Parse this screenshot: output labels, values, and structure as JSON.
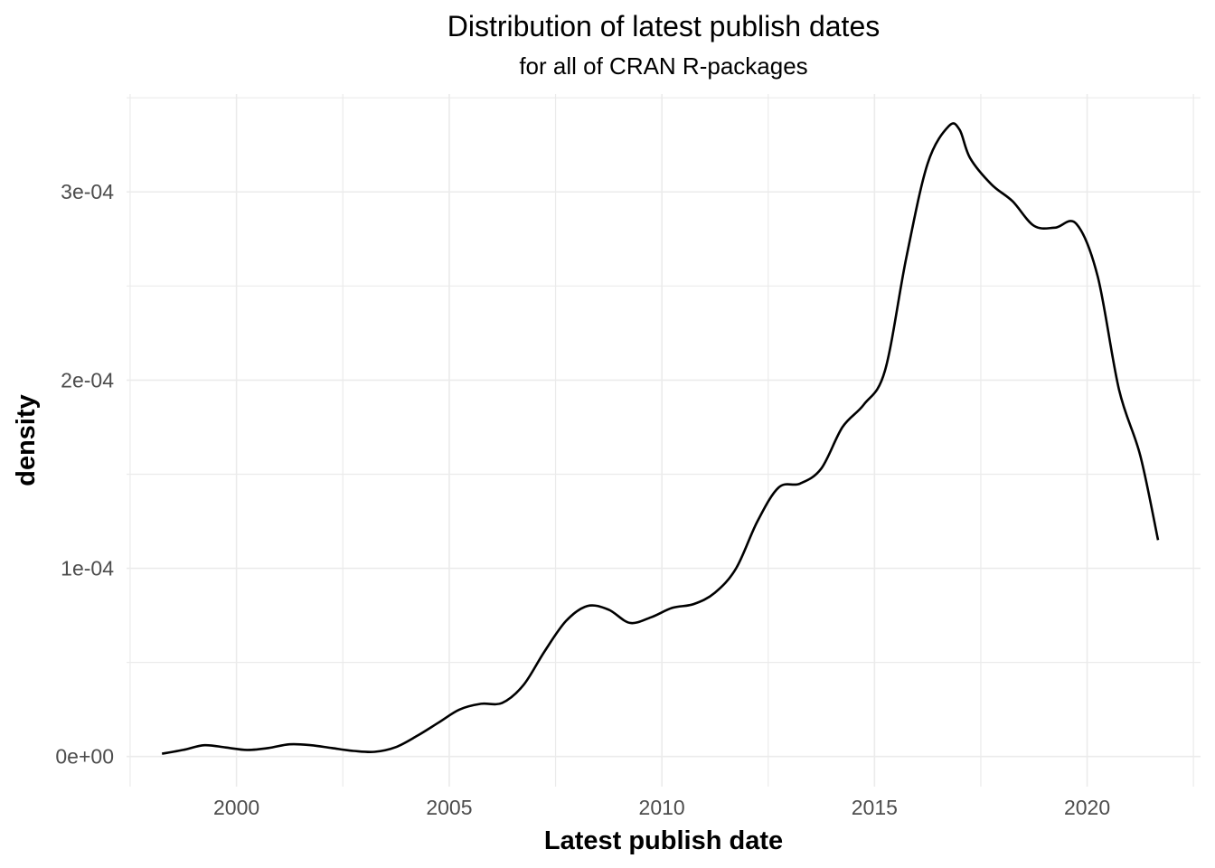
{
  "chart_data": {
    "type": "line",
    "title": "Distribution of latest publish dates",
    "subtitle": "for all of CRAN R-packages",
    "xlabel": "Latest publish date",
    "ylabel": "density",
    "x_ticks": [
      "2000",
      "2005",
      "2010",
      "2015",
      "2020"
    ],
    "y_ticks": [
      "0e+00",
      "1e-04",
      "2e-04",
      "3e-04"
    ],
    "xlim": [
      "1997-06-01",
      "2022-09-01"
    ],
    "ylim": [
      -1.6e-05,
      0.000352
    ],
    "grid": true,
    "legend": "none",
    "series": [
      {
        "line_color": "#000000",
        "x": [
          "1998-04-01",
          "1998-10-01",
          "1999-04-01",
          "1999-10-01",
          "2000-04-01",
          "2000-10-01",
          "2001-04-01",
          "2001-10-01",
          "2002-04-01",
          "2002-10-01",
          "2003-04-01",
          "2003-10-01",
          "2004-04-01",
          "2004-10-01",
          "2005-04-01",
          "2005-10-01",
          "2006-04-01",
          "2006-10-01",
          "2007-04-01",
          "2007-10-01",
          "2008-04-01",
          "2008-10-01",
          "2009-04-01",
          "2009-10-01",
          "2010-04-01",
          "2010-10-01",
          "2011-04-01",
          "2011-10-01",
          "2012-04-01",
          "2012-10-01",
          "2013-04-01",
          "2013-10-01",
          "2014-04-01",
          "2014-10-01",
          "2015-04-01",
          "2015-10-01",
          "2016-04-01",
          "2016-10-01",
          "2017-01-01",
          "2017-04-01",
          "2017-10-01",
          "2018-04-01",
          "2018-10-01",
          "2019-04-01",
          "2019-10-01",
          "2020-04-01",
          "2020-10-01",
          "2021-04-01",
          "2021-09-01"
        ],
        "y": [
          1.5e-06,
          3.5e-06,
          6e-06,
          4.8e-06,
          3.5e-06,
          4.5e-06,
          6.5e-06,
          6e-06,
          4.5e-06,
          3e-06,
          2.5e-06,
          5e-06,
          1.1e-05,
          1.8e-05,
          2.5e-05,
          2.8e-05,
          2.85e-05,
          3.8e-05,
          5.6e-05,
          7.2e-05,
          8e-05,
          7.8e-05,
          7.1e-05,
          7.4e-05,
          7.9e-05,
          8.1e-05,
          8.7e-05,
          0.0001,
          0.000125,
          0.000143,
          0.000145,
          0.000153,
          0.000175,
          0.000187,
          0.000205,
          0.000265,
          0.000315,
          0.000335,
          0.000333,
          0.000318,
          0.000304,
          0.000295,
          0.000282,
          0.000281,
          0.000283,
          0.000255,
          0.000195,
          0.00016,
          0.000115
        ]
      }
    ]
  }
}
